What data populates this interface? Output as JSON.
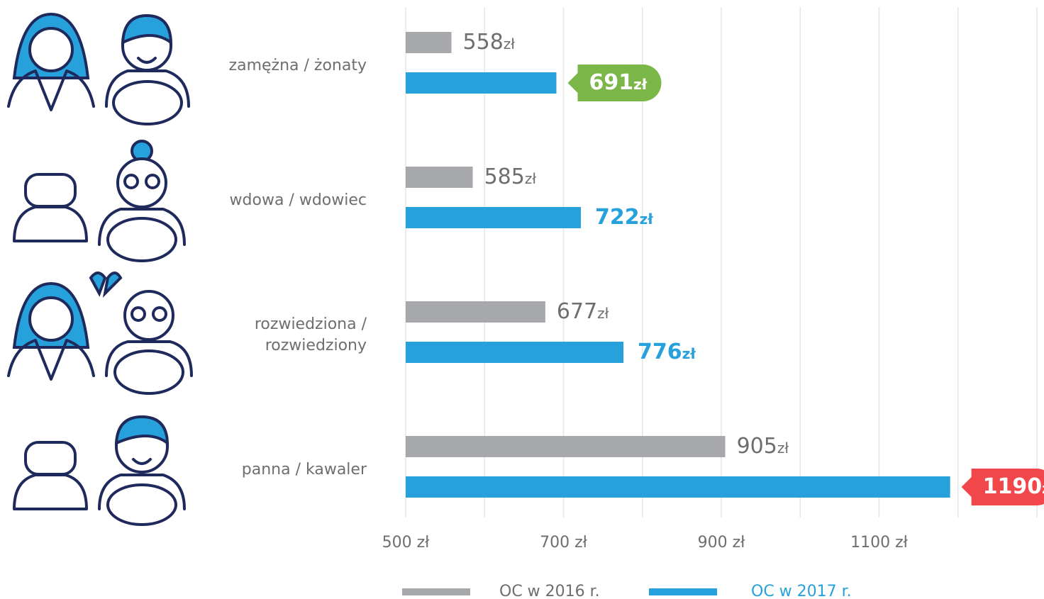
{
  "chart_data": {
    "type": "bar",
    "orientation": "horizontal",
    "categories": [
      "zamężna / żonaty",
      "wdowa / wdowiec",
      "rozwiedziona /\nrozwiedziony",
      "panna / kawaler"
    ],
    "value_unit": "zł",
    "series": [
      {
        "name": "OC w 2016 r.",
        "color": "#a7a8ab",
        "label_color": "#6e6e6e",
        "values": [
          558,
          585,
          677,
          905
        ]
      },
      {
        "name": "OC w 2017 r.",
        "color": "#27a1dc",
        "label_color": "#27a1dc",
        "values": [
          691,
          722,
          776,
          1190
        ],
        "highlight": [
          {
            "index": 0,
            "color": "#7ab648"
          },
          {
            "index": 3,
            "color": "#f2474a"
          }
        ]
      }
    ],
    "xlim": [
      500,
      1300
    ],
    "xticks": [
      {
        "value": 500,
        "label": "500 zł"
      },
      {
        "value": 700,
        "label": "700 zł"
      },
      {
        "value": 900,
        "label": "900 zł"
      },
      {
        "value": 1100,
        "label": "1100 zł"
      }
    ],
    "xgrid": [
      500,
      600,
      700,
      800,
      900,
      1000,
      1100,
      1200,
      1300
    ],
    "grid": true
  }
}
